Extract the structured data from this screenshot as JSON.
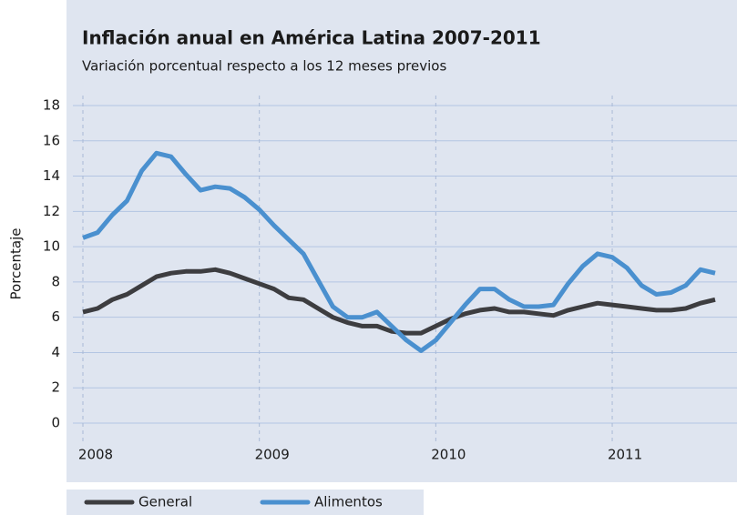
{
  "chart_data": {
    "type": "line",
    "title": "Inflación anual en América Latina 2007-2011",
    "subtitle": "Variación porcentual respecto a los 12 meses previos",
    "y_label": "Porcentaje",
    "categories": [
      "2008",
      null,
      null,
      null,
      null,
      null,
      null,
      null,
      null,
      null,
      null,
      null,
      "2009",
      null,
      null,
      null,
      null,
      null,
      null,
      null,
      null,
      null,
      null,
      null,
      "2010",
      null,
      null,
      null,
      null,
      null,
      null,
      null,
      null,
      null,
      null,
      null,
      "2011",
      null,
      null,
      null,
      null,
      null,
      null,
      null
    ],
    "series": [
      {
        "name": "General",
        "color": "#3d3d40",
        "values": [
          6.3,
          6.5,
          7.0,
          7.3,
          7.8,
          8.3,
          8.5,
          8.6,
          8.6,
          8.7,
          8.5,
          8.2,
          7.9,
          7.6,
          7.1,
          7.0,
          6.5,
          6.0,
          5.7,
          5.5,
          5.5,
          5.2,
          5.1,
          5.1,
          5.5,
          5.9,
          6.2,
          6.4,
          6.5,
          6.3,
          6.3,
          6.2,
          6.1,
          6.4,
          6.6,
          6.8,
          6.7,
          6.6,
          6.5,
          6.4,
          6.4,
          6.5,
          6.8,
          7.0
        ]
      },
      {
        "name": "Alimentos",
        "color": "#4a90cf",
        "values": [
          10.5,
          10.8,
          11.8,
          12.6,
          14.3,
          15.3,
          15.1,
          14.1,
          13.2,
          13.4,
          13.3,
          12.8,
          12.1,
          11.2,
          10.4,
          9.6,
          8.1,
          6.6,
          6.0,
          6.0,
          6.3,
          5.5,
          4.7,
          4.1,
          4.7,
          5.7,
          6.7,
          7.6,
          7.6,
          7.0,
          6.6,
          6.6,
          6.7,
          7.9,
          8.9,
          9.6,
          9.4,
          8.8,
          7.8,
          7.3,
          7.4,
          7.8,
          8.7,
          8.5
        ]
      }
    ],
    "ylim": [
      0,
      18
    ],
    "yticks": [
      0,
      2,
      4,
      6,
      8,
      10,
      12,
      14,
      16,
      18
    ],
    "grid": true
  }
}
